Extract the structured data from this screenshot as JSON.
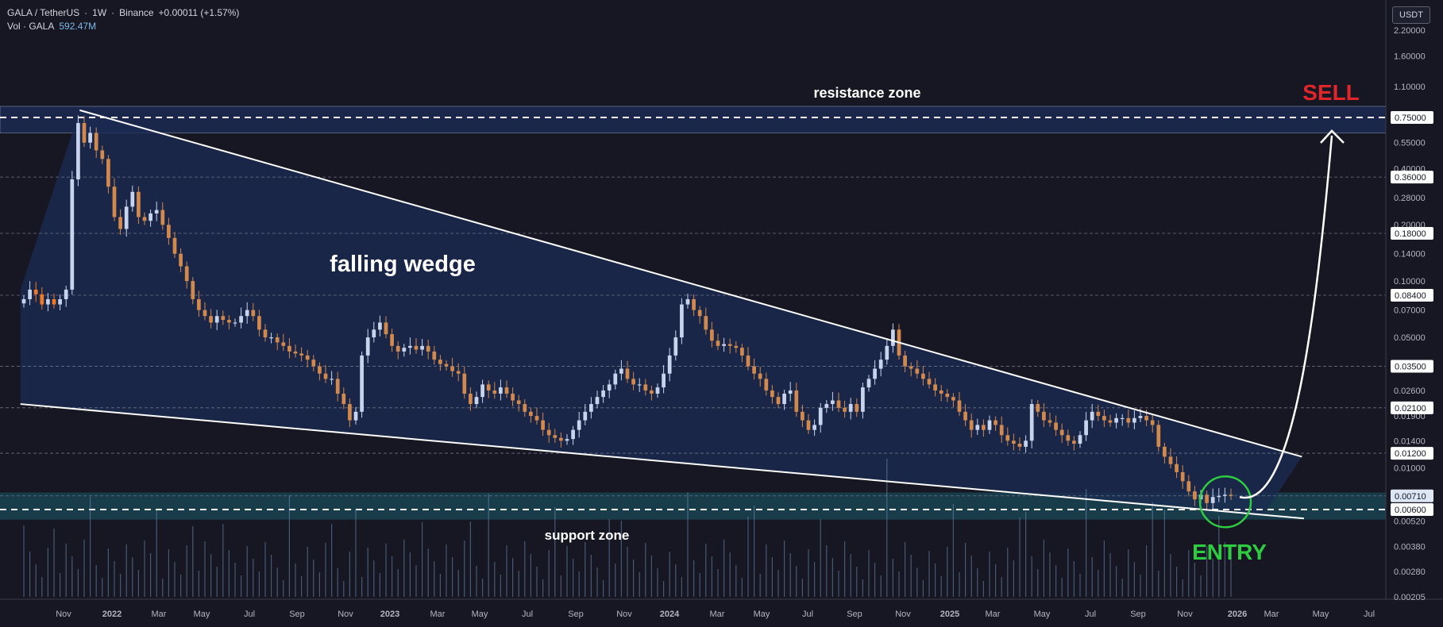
{
  "header": {
    "symbol": "GALA / TetherUS",
    "interval": "1W",
    "exchange": "Binance",
    "change": "+0.00011 (+1.57%)",
    "volume_label": "Vol · GALA",
    "volume_value": "592.47M"
  },
  "currency_button": "USDT",
  "colors": {
    "background": "#161722",
    "up": "#c8d4ee",
    "down": "#d2894d",
    "down_bright": "#f07a2a",
    "wedge_fill": "#1b2a52",
    "support_fill": "#1b4a5a",
    "entry_circle": "#2ecc40",
    "sell_text": "#e0252b",
    "line": "#ffffff"
  },
  "annotations": {
    "resistance": "resistance zone",
    "support": "support zone",
    "pattern": "falling wedge",
    "sell": "SELL",
    "entry": "ENTRY"
  },
  "chart_data": {
    "type": "candlestick",
    "scale": "log",
    "x_axis_labels": [
      "Nov",
      "2022",
      "Mar",
      "May",
      "Jul",
      "Sep",
      "Nov",
      "2023",
      "Mar",
      "May",
      "Jul",
      "Sep",
      "Nov",
      "2024",
      "Mar",
      "May",
      "Jul",
      "Sep",
      "Nov",
      "2025",
      "Mar",
      "May",
      "Jul",
      "Sep",
      "Nov",
      "2026",
      "Mar",
      "May",
      "Jul"
    ],
    "y_axis_labels": [
      "2.20000",
      "1.60000",
      "1.10000",
      "0.55000",
      "0.40000",
      "0.28000",
      "0.20000",
      "0.14000",
      "0.10000",
      "0.07000",
      "0.05000",
      "0.02600",
      "0.01900",
      "0.01400",
      "0.01000",
      "0.00520",
      "0.00380",
      "0.00280",
      "0.00205"
    ],
    "price_badges": [
      {
        "value": "0.75000",
        "color": "#ffffff"
      },
      {
        "value": "0.36000",
        "color": "#ffffff"
      },
      {
        "value": "0.18000",
        "color": "#ffffff"
      },
      {
        "value": "0.08400",
        "color": "#ffffff"
      },
      {
        "value": "0.03500",
        "color": "#ffffff"
      },
      {
        "value": "0.02100",
        "color": "#ffffff"
      },
      {
        "value": "0.01200",
        "color": "#ffffff"
      },
      {
        "value": "0.00710",
        "color": "#dce6f5"
      },
      {
        "value": "0.00600",
        "color": "#ffffff"
      }
    ],
    "resistance_zone": [
      0.62,
      0.86
    ],
    "support_zone": [
      0.0053,
      0.0074
    ],
    "wedge_upper": [
      {
        "date": "2021-11-22",
        "price": 0.82
      },
      {
        "date": "2026-03-30",
        "price": 0.0115
      }
    ],
    "wedge_lower": [
      {
        "date": "2021-09-06",
        "price": 0.022
      },
      {
        "date": "2026-02-09",
        "price": 0.0057
      }
    ],
    "closes": [
      0.08,
      0.09,
      0.085,
      0.075,
      0.08,
      0.075,
      0.08,
      0.09,
      0.35,
      0.7,
      0.55,
      0.62,
      0.5,
      0.45,
      0.32,
      0.22,
      0.19,
      0.25,
      0.3,
      0.22,
      0.21,
      0.23,
      0.24,
      0.2,
      0.17,
      0.14,
      0.12,
      0.1,
      0.08,
      0.07,
      0.065,
      0.06,
      0.065,
      0.062,
      0.06,
      0.06,
      0.065,
      0.07,
      0.065,
      0.055,
      0.05,
      0.05,
      0.047,
      0.045,
      0.042,
      0.041,
      0.04,
      0.038,
      0.035,
      0.032,
      0.03,
      0.03,
      0.025,
      0.022,
      0.018,
      0.02,
      0.04,
      0.05,
      0.055,
      0.06,
      0.052,
      0.045,
      0.042,
      0.044,
      0.045,
      0.043,
      0.045,
      0.042,
      0.038,
      0.036,
      0.035,
      0.033,
      0.032,
      0.025,
      0.022,
      0.024,
      0.028,
      0.026,
      0.025,
      0.027,
      0.025,
      0.023,
      0.022,
      0.02,
      0.019,
      0.018,
      0.016,
      0.015,
      0.0145,
      0.014,
      0.0143,
      0.016,
      0.018,
      0.02,
      0.022,
      0.024,
      0.026,
      0.028,
      0.032,
      0.034,
      0.03,
      0.028,
      0.028,
      0.026,
      0.025,
      0.027,
      0.032,
      0.04,
      0.05,
      0.075,
      0.08,
      0.07,
      0.065,
      0.055,
      0.048,
      0.045,
      0.046,
      0.045,
      0.044,
      0.04,
      0.035,
      0.032,
      0.03,
      0.026,
      0.024,
      0.022,
      0.025,
      0.026,
      0.02,
      0.018,
      0.016,
      0.017,
      0.021,
      0.022,
      0.023,
      0.021,
      0.02,
      0.022,
      0.02,
      0.027,
      0.03,
      0.034,
      0.038,
      0.045,
      0.055,
      0.04,
      0.035,
      0.034,
      0.032,
      0.03,
      0.028,
      0.026,
      0.025,
      0.024,
      0.023,
      0.02,
      0.018,
      0.016,
      0.017,
      0.016,
      0.018,
      0.017,
      0.015,
      0.014,
      0.0135,
      0.013,
      0.014,
      0.022,
      0.02,
      0.018,
      0.0175,
      0.016,
      0.015,
      0.014,
      0.0135,
      0.015,
      0.018,
      0.02,
      0.019,
      0.018,
      0.0175,
      0.0185,
      0.0185,
      0.0175,
      0.0185,
      0.019,
      0.018,
      0.017,
      0.013,
      0.0115,
      0.0105,
      0.0095,
      0.0085,
      0.0075,
      0.0068,
      0.0072,
      0.0065,
      0.007,
      0.0071,
      0.0072,
      0.0071
    ]
  }
}
